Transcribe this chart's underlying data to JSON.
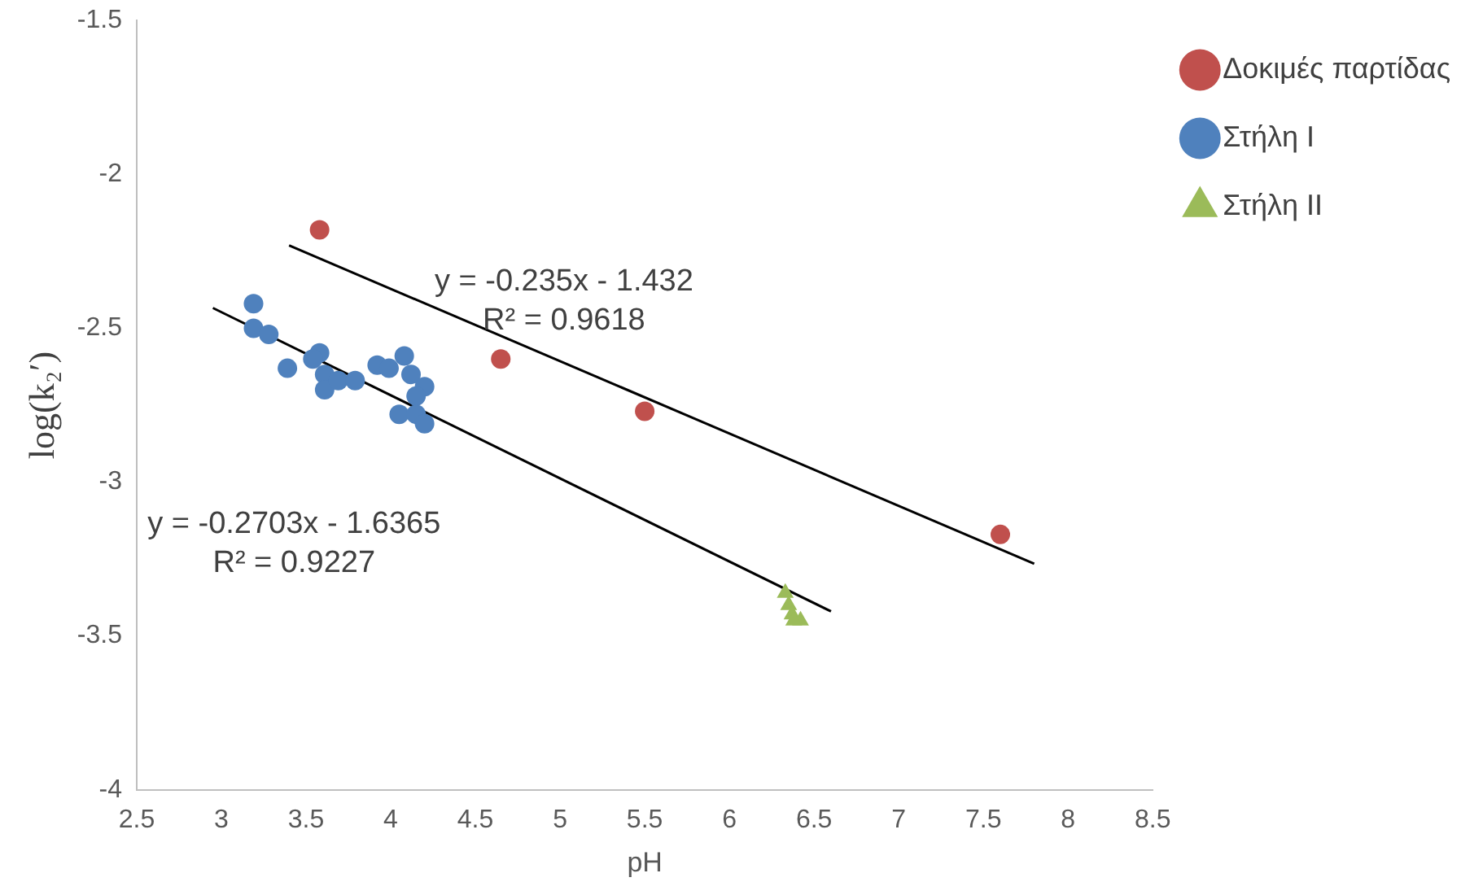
{
  "chart_data": {
    "type": "scatter",
    "xlabel": "pH",
    "ylabel": "log(k₂′)",
    "xlim": [
      2.5,
      8.5
    ],
    "xticks": [
      2.5,
      3,
      3.5,
      4,
      4.5,
      5,
      5.5,
      6,
      6.5,
      7,
      7.5,
      8,
      8.5
    ],
    "ylim": [
      -4,
      -1.5
    ],
    "yticks": [
      -4,
      -3.5,
      -3,
      -2.5,
      -2,
      -1.5
    ],
    "grid": false,
    "legend": "top right",
    "series": [
      {
        "name": "Δοκιμές παρτίδας",
        "color": "#c0504d",
        "marker": "circle",
        "x": [
          3.58,
          4.65,
          5.5,
          7.6
        ],
        "values": [
          -2.18,
          -2.6,
          -2.77,
          -3.17
        ]
      },
      {
        "name": "Στήλη Ι",
        "color": "#4f81bd",
        "marker": "circle",
        "x": [
          3.19,
          3.19,
          3.28,
          3.39,
          3.58,
          3.54,
          3.61,
          3.61,
          3.69,
          3.79,
          3.92,
          3.99,
          4.08,
          4.12,
          4.2,
          4.15,
          4.05,
          4.15,
          4.2
        ],
        "values": [
          -2.42,
          -2.5,
          -2.52,
          -2.63,
          -2.58,
          -2.6,
          -2.65,
          -2.7,
          -2.67,
          -2.67,
          -2.62,
          -2.63,
          -2.59,
          -2.65,
          -2.69,
          -2.72,
          -2.78,
          -2.78,
          -2.81
        ]
      },
      {
        "name": "Στήλη ΙΙ",
        "color": "#9bbb59",
        "marker": "triangle",
        "x": [
          6.33,
          6.35,
          6.37,
          6.42,
          6.38
        ],
        "values": [
          -3.36,
          -3.4,
          -3.43,
          -3.45,
          -3.45
        ]
      },
      {
        "type": "line",
        "color": "#000000",
        "marker": "none",
        "x": [
          3.4,
          7.8
        ],
        "values": [
          -2.231,
          -3.265
        ]
      },
      {
        "type": "line",
        "color": "#000000",
        "marker": "none",
        "x": [
          2.95,
          6.6
        ],
        "values": [
          -2.434,
          -3.42
        ]
      }
    ],
    "annotations": [
      "y = -0.235x - 1.432\nR² = 0.9618",
      "y = -0.2703x - 1.6365\nR² = 0.9227"
    ]
  }
}
